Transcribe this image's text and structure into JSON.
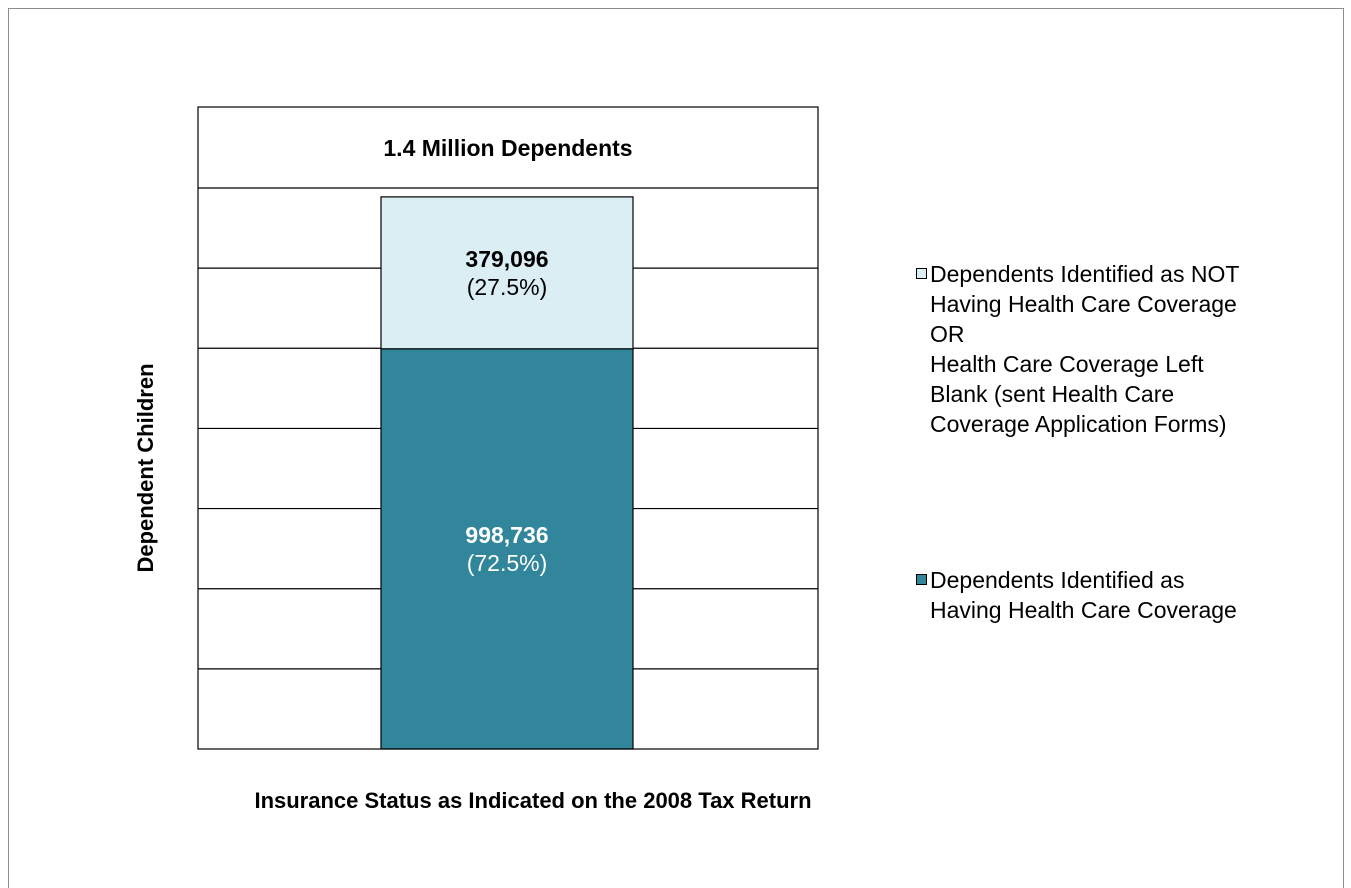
{
  "chart_data": {
    "type": "bar",
    "stacked": true,
    "title": "1.4 Million Dependents",
    "xlabel": "Insurance Status as Indicated on the 2008 Tax Return",
    "ylabel": "Dependent Children",
    "ylim": [
      0,
      1400000
    ],
    "grid": true,
    "legend_position": "right",
    "categories": [
      ""
    ],
    "series": [
      {
        "name": "Dependents Identified as Having Health Care Coverage",
        "values": [
          998736
        ],
        "label": "998,736",
        "percent_label": "(72.5%)",
        "color": "#31869b"
      },
      {
        "name": "Dependents Identified as NOT Having Health Care Coverage OR Health Care Coverage Left Blank (sent Health Care Coverage Application Forms)",
        "values": [
          379096
        ],
        "label": "379,096",
        "percent_label": "(27.5%)",
        "color": "#daeef3"
      }
    ]
  },
  "legend": [
    {
      "text": "Dependents Identified as NOT\nHaving Health Care Coverage\nOR\nHealth Care Coverage Left\nBlank (sent Health Care\nCoverage Application Forms)",
      "color": "#daeef3"
    },
    {
      "text": "Dependents Identified as\nHaving Health Care Coverage",
      "color": "#31869b"
    }
  ]
}
